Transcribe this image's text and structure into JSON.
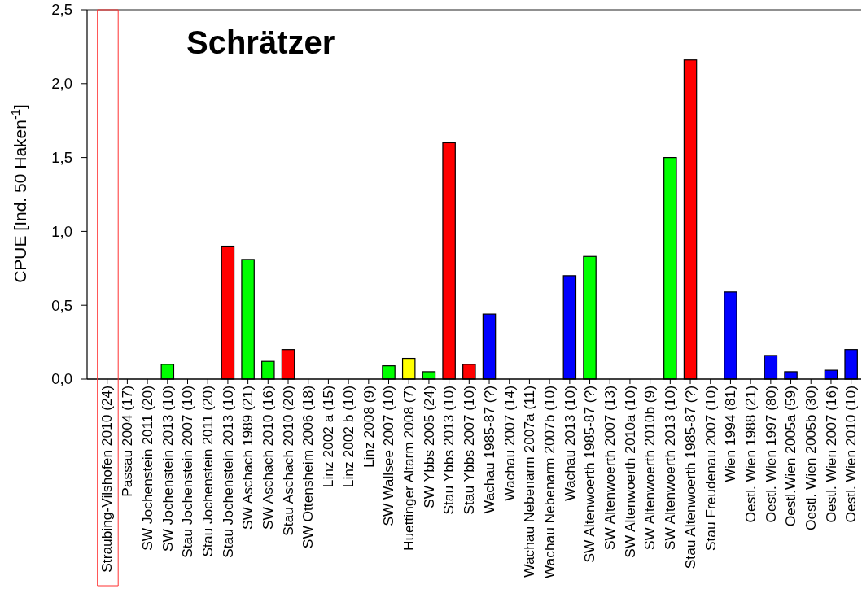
{
  "chart_data": {
    "type": "bar",
    "title": "Schrätzer",
    "ylabel": "CPUE [Ind. 50 Haken$^{-1}$]",
    "categories": [
      "Straubing-Vilshofen 2010 (24)",
      "Passau 2004 (17)",
      "SW Jochenstein 2011 (20)",
      "SW Jochenstein 2013 (10)",
      "Stau Jochenstein 2007 (10)",
      "Stau Jochenstein 2011 (20)",
      "Stau Jochenstein 2013 (10)",
      "SW Aschach 1989 (21)",
      "SW Aschach 2010 (16)",
      "Stau Aschach 2010 (20)",
      "SW Ottensheim 2006 (18)",
      "Linz 2002 a (15)",
      "Linz 2002 b (10)",
      "Linz 2008 (9)",
      "SW Wallsee 2007 (10)",
      "Huettinger Altarm 2008 (7)",
      "SW Ybbs 2005 (24)",
      "Stau Ybbs 2013 (10)",
      "Stau Ybbs 2007 (10)",
      "Wachau 1985-87 (?)",
      "Wachau 2007 (14)",
      "Wachau Nebenarm 2007a (11)",
      "Wachau Nebenarm 2007b (10)",
      "Wachau 2013 (10)",
      "SW Altenwoerth 1985-87 (?)",
      "SW Altenwoerth 2007 (13)",
      "SW Altenwoerth 2010a (10)",
      "SW Altenwoerth 2010b (9)",
      "SW Altenwoerth 2013 (10)",
      "Stau Altenwoerth 1985-87 (?)",
      "Stau Freudenau 2007 (10)",
      "Wien 1994 (81)",
      "Oestl. Wien 1988 (21)",
      "Oestl. Wien 1997 (80)",
      "Oestl.Wien 2005a (59)",
      "Oestl. Wien 2005b (30)",
      "Oestl. Wien 2007 (16)",
      "Oestl. Wien 2010 (10)"
    ],
    "values": [
      0,
      0,
      0,
      0.1,
      0,
      0,
      0.9,
      0.81,
      0.12,
      0.2,
      0,
      0,
      0,
      0,
      0.09,
      0.14,
      0.05,
      1.6,
      0.1,
      0.44,
      0,
      0,
      0,
      0.7,
      0.83,
      0,
      0,
      0,
      1.5,
      2.16,
      0,
      0.59,
      0,
      0.16,
      0.05,
      0,
      0.06,
      0.2
    ],
    "colors": [
      "#0000ff",
      "#0000ff",
      "#00ff00",
      "#00ff00",
      "#ff0000",
      "#ff0000",
      "#ff0000",
      "#00ff00",
      "#00ff00",
      "#ff0000",
      "#00ff00",
      "#0000ff",
      "#0000ff",
      "#0000ff",
      "#00ff00",
      "#ffff00",
      "#00ff00",
      "#ff0000",
      "#ff0000",
      "#0000ff",
      "#0000ff",
      "#0000ff",
      "#0000ff",
      "#0000ff",
      "#00ff00",
      "#00ff00",
      "#00ff00",
      "#00ff00",
      "#00ff00",
      "#ff0000",
      "#ff0000",
      "#0000ff",
      "#0000ff",
      "#0000ff",
      "#0000ff",
      "#0000ff",
      "#0000ff",
      "#0000ff"
    ],
    "ylim": [
      0,
      2.5
    ],
    "yticks": [
      {
        "value": 0,
        "label": "0,0"
      },
      {
        "value": 0.5,
        "label": "0,5"
      },
      {
        "value": 1,
        "label": "1,0"
      },
      {
        "value": 1.5,
        "label": "1,5"
      },
      {
        "value": 2,
        "label": "2,0"
      },
      {
        "value": 2.5,
        "label": "2,5"
      }
    ]
  }
}
